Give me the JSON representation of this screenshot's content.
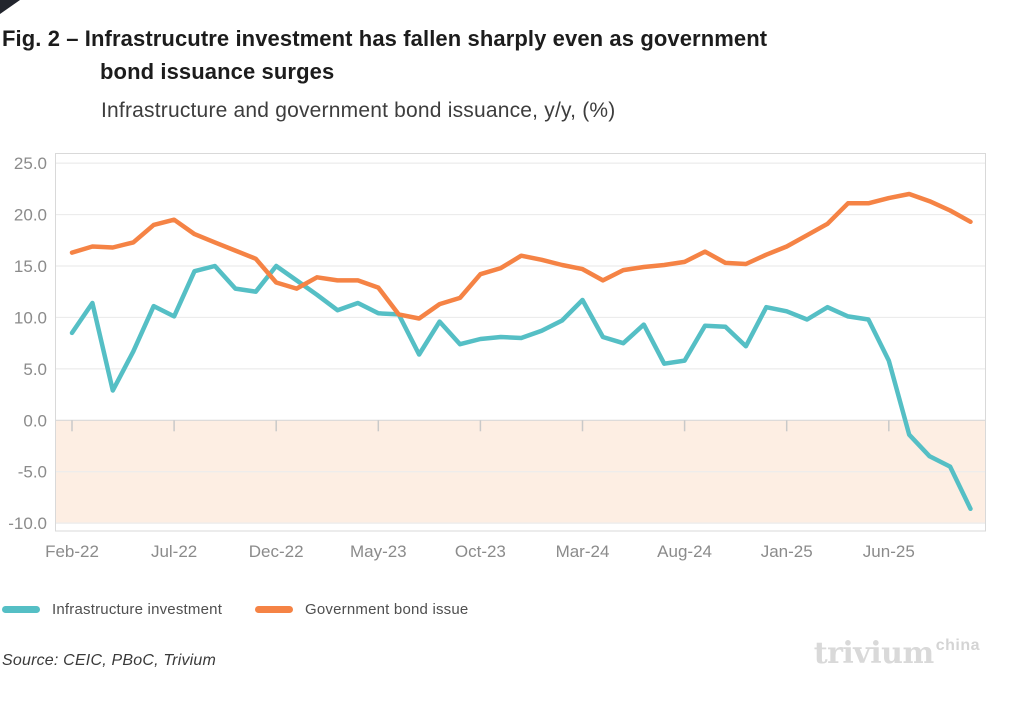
{
  "figure": {
    "title_line1": "Fig. 2 – Infrastrucutre investment has fallen sharply even as government",
    "title_line2": "bond issuance surges",
    "subtitle": "Infrastructure and government bond issuance, y/y, (%)"
  },
  "chart_data": {
    "type": "line",
    "title": "Fig. 2 – Infrastrucutre investment has fallen sharply even as government bond issuance surges",
    "subtitle": "Infrastructure and government bond issuance, y/y, (%)",
    "categories": [
      "Feb-22",
      "Mar-22",
      "Apr-22",
      "May-22",
      "Jun-22",
      "Jul-22",
      "Aug-22",
      "Sep-22",
      "Oct-22",
      "Nov-22",
      "Dec-22",
      "Jan-23",
      "Feb-23",
      "Mar-23",
      "Apr-23",
      "May-23",
      "Jun-23",
      "Jul-23",
      "Aug-23",
      "Sep-23",
      "Oct-23",
      "Nov-23",
      "Dec-23",
      "Jan-24",
      "Feb-24",
      "Mar-24",
      "Apr-24",
      "May-24",
      "Jun-24",
      "Jul-24",
      "Aug-24",
      "Sep-24",
      "Oct-24",
      "Nov-24",
      "Dec-24",
      "Jan-25",
      "Feb-25",
      "Mar-25",
      "Apr-25",
      "May-25",
      "Jun-25",
      "Jul-25",
      "Aug-25",
      "Sep-25",
      "Oct-25"
    ],
    "x_tick_labels": [
      "Feb-22",
      "Jul-22",
      "Dec-22",
      "May-23",
      "Oct-23",
      "Mar-24",
      "Aug-24",
      "Jan-25",
      "Jun-25"
    ],
    "x_tick_every": 5,
    "series": [
      {
        "name": "Infrastructure investment",
        "color": "#55bfc5",
        "values": [
          8.5,
          11.4,
          2.9,
          6.7,
          11.1,
          10.1,
          14.5,
          15.0,
          12.8,
          12.5,
          15.0,
          13.6,
          12.2,
          10.7,
          11.4,
          10.4,
          10.3,
          6.4,
          9.6,
          7.4,
          7.9,
          8.1,
          8.0,
          8.7,
          9.7,
          11.7,
          8.1,
          7.5,
          9.3,
          5.5,
          5.8,
          9.2,
          9.1,
          7.2,
          11.0,
          10.6,
          9.8,
          11.0,
          10.1,
          9.8,
          5.8,
          -1.4,
          -3.5,
          -4.5,
          -8.6
        ]
      },
      {
        "name": "Government bond issue",
        "color": "#f58345",
        "values": [
          16.3,
          16.9,
          16.8,
          17.3,
          19.0,
          19.5,
          18.1,
          17.3,
          16.5,
          15.7,
          13.4,
          12.8,
          13.9,
          13.6,
          13.6,
          12.9,
          10.3,
          9.9,
          11.3,
          11.9,
          14.2,
          14.8,
          16.0,
          15.6,
          15.1,
          14.7,
          13.6,
          14.6,
          14.9,
          15.1,
          15.4,
          16.4,
          15.3,
          15.2,
          16.1,
          16.9,
          18.0,
          19.1,
          21.1,
          21.1,
          21.6,
          22.0,
          21.3,
          20.4,
          19.3
        ]
      }
    ],
    "ylim": [
      -10,
      25
    ],
    "y_ticks": [
      25,
      20,
      15,
      10,
      5,
      0,
      -5,
      -10
    ],
    "grid": true,
    "legend_position": "bottom",
    "negative_shade_color": "#fdeee3",
    "grid_color": "#ececec",
    "zero_line_color": "#d8d8d8",
    "border_color": "#d9d9d9",
    "tick_color": "#c9c9c9"
  },
  "source": {
    "text": "Source: CEIC, PBoC, Trivium"
  },
  "logo": {
    "brand": "trivium",
    "suffix": "china"
  }
}
